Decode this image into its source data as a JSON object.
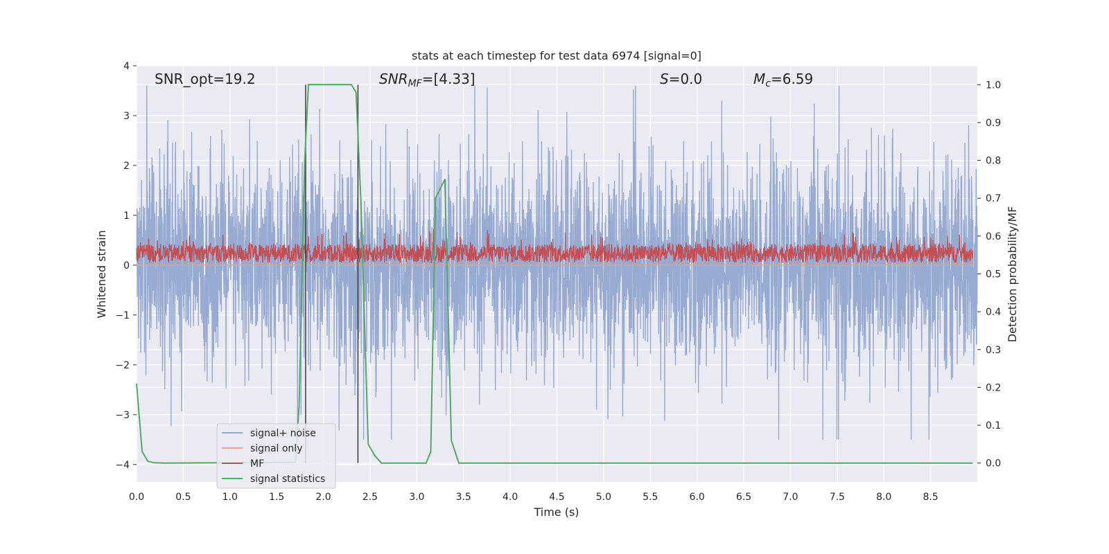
{
  "chart_data": {
    "type": "line",
    "title": "stats at each timestep for test data 6974 [signal=0]",
    "xlabel": "Time (s)",
    "ylabel_left": "Whitened strain",
    "ylabel_right": "Detection probability/MF",
    "xlim": [
      0.0,
      9.0
    ],
    "ylim_left": [
      -4.35,
      4.0
    ],
    "ylim_right": [
      -0.05,
      1.05
    ],
    "x_ticks": [
      "0.0",
      "0.5",
      "1.0",
      "1.5",
      "2.0",
      "2.5",
      "3.0",
      "3.5",
      "4.0",
      "4.5",
      "5.0",
      "5.5",
      "6.0",
      "6.5",
      "7.0",
      "7.5",
      "8.0",
      "8.5"
    ],
    "y_ticks_left": [
      "4",
      "3",
      "2",
      "1",
      "0",
      "−1",
      "−2",
      "−3",
      "−4"
    ],
    "y_ticks_right": [
      "1.0",
      "0.9",
      "0.8",
      "0.7",
      "0.6",
      "0.5",
      "0.4",
      "0.3",
      "0.2",
      "0.1",
      "0.0"
    ],
    "grid": true,
    "legend_placement": "lower-left",
    "annotations": {
      "snr_opt": "SNR_opt=19.2",
      "snr_mf_sym": "SNR",
      "snr_mf_sub": "MF",
      "snr_mf_val": "=[4.33]",
      "s_sym": "S",
      "s_val": "=0.0",
      "mc_sym": "M",
      "mc_sub": "c",
      "mc_val": "=6.59"
    },
    "vlines": [
      1.81,
      2.37
    ],
    "series": [
      {
        "name": "signal+ noise",
        "color": "#92a6cf",
        "noise_range": [
          -3.5,
          3.6
        ]
      },
      {
        "name": "signal only",
        "color": "#e7a58a",
        "values_const": 0.0
      },
      {
        "name": "MF",
        "color": "#c44e52",
        "band": [
          0.05,
          0.55
        ]
      },
      {
        "name": "signal statistics",
        "color": "#55a868",
        "x": [
          0.0,
          0.06,
          0.12,
          0.18,
          0.3,
          1.7,
          1.74,
          1.8,
          1.84,
          1.9,
          2.3,
          2.35,
          2.4,
          2.48,
          2.55,
          2.62,
          3.1,
          3.15,
          3.2,
          3.3,
          3.37,
          3.45,
          8.95
        ],
        "values": [
          0.21,
          0.03,
          0.005,
          0.001,
          0.0,
          0.002,
          0.15,
          0.8,
          1.0,
          1.0,
          1.0,
          0.98,
          0.7,
          0.05,
          0.02,
          0.0,
          0.0,
          0.03,
          0.7,
          0.75,
          0.06,
          0.0,
          0.0
        ]
      }
    ]
  }
}
